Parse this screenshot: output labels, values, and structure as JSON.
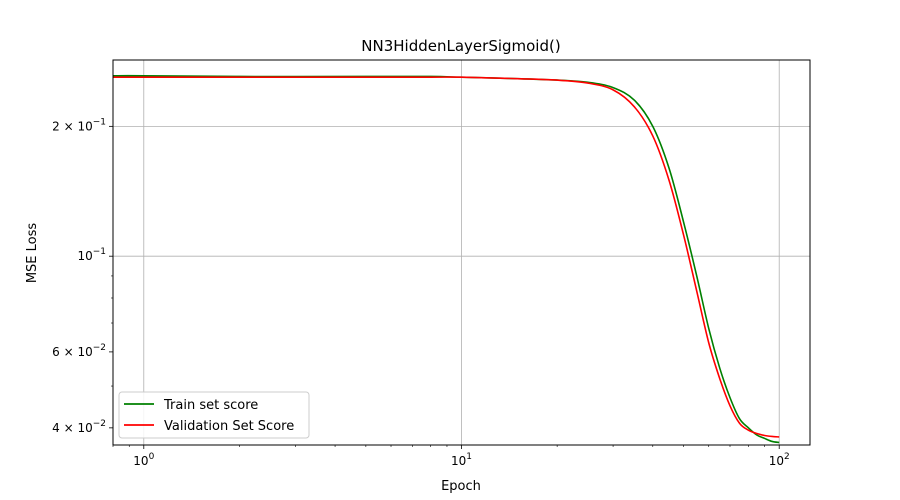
{
  "chart_data": {
    "type": "line",
    "title": "NN3HiddenLayerSigmoid()",
    "xlabel": "Epoch",
    "ylabel": "MSE Loss",
    "xscale": "log",
    "yscale": "log",
    "xlim": [
      0.8,
      125
    ],
    "ylim": [
      0.0365,
      0.285
    ],
    "grid": true,
    "legend_position": "lower-left",
    "x_ticks": [
      {
        "value": 1,
        "base": "10",
        "exp": "0"
      },
      {
        "value": 10,
        "base": "10",
        "exp": "1"
      },
      {
        "value": 100,
        "base": "10",
        "exp": "2"
      }
    ],
    "y_ticks": [
      {
        "value": 0.2,
        "mant": "2",
        "base": "10",
        "exp": "−1"
      },
      {
        "value": 0.1,
        "mant": "",
        "base": "10",
        "exp": "−1"
      },
      {
        "value": 0.06,
        "mant": "6",
        "base": "10",
        "exp": "−2"
      },
      {
        "value": 0.04,
        "mant": "4",
        "base": "10",
        "exp": "−2"
      }
    ],
    "series": [
      {
        "name": "Train set score",
        "color": "#008000",
        "x": [
          0.8,
          1,
          2,
          5,
          8,
          10,
          15,
          20,
          25,
          30,
          35,
          40,
          45,
          50,
          55,
          60,
          65,
          70,
          75,
          80,
          85,
          90,
          95,
          100
        ],
        "y": [
          0.262,
          0.262,
          0.261,
          0.261,
          0.261,
          0.26,
          0.258,
          0.256,
          0.253,
          0.246,
          0.23,
          0.2,
          0.16,
          0.12,
          0.09,
          0.068,
          0.055,
          0.047,
          0.042,
          0.04,
          0.0385,
          0.0378,
          0.0372,
          0.037
        ]
      },
      {
        "name": "Validation Set Score",
        "color": "#ff0000",
        "x": [
          0.8,
          1,
          2,
          5,
          8,
          10,
          15,
          20,
          25,
          30,
          35,
          40,
          45,
          50,
          55,
          60,
          65,
          70,
          75,
          80,
          85,
          90,
          95,
          100
        ],
        "y": [
          0.26,
          0.26,
          0.26,
          0.26,
          0.26,
          0.26,
          0.258,
          0.256,
          0.252,
          0.243,
          0.222,
          0.19,
          0.15,
          0.112,
          0.083,
          0.063,
          0.052,
          0.045,
          0.041,
          0.0395,
          0.0388,
          0.0384,
          0.0382,
          0.0381
        ]
      }
    ]
  }
}
